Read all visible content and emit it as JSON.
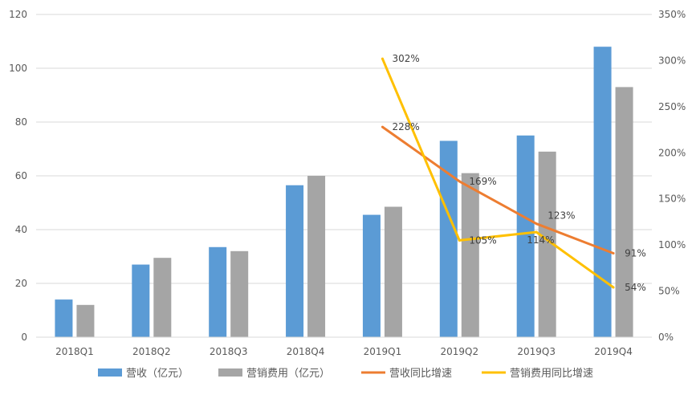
{
  "chart_data": {
    "type": "bar",
    "categories": [
      "2018Q1",
      "2018Q2",
      "2018Q3",
      "2018Q4",
      "2019Q1",
      "2019Q2",
      "2019Q3",
      "2019Q4"
    ],
    "series": [
      {
        "name": "营收（亿元）",
        "kind": "bar",
        "axis": "left",
        "color": "#5B9BD5",
        "values": [
          14,
          27,
          33.5,
          56.5,
          45.5,
          73,
          75,
          108
        ]
      },
      {
        "name": "营销费用（亿元）",
        "kind": "bar",
        "axis": "left",
        "color": "#A5A5A5",
        "values": [
          12,
          29.5,
          32,
          60,
          48.5,
          61,
          69,
          93
        ]
      },
      {
        "name": "营收同比增速",
        "kind": "line",
        "axis": "right",
        "color": "#ED7D31",
        "x": [
          "2019Q1",
          "2019Q2",
          "2019Q3",
          "2019Q4"
        ],
        "values": [
          2.28,
          1.69,
          1.23,
          0.91
        ],
        "labels": [
          "228%",
          "169%",
          "123%",
          "91%"
        ]
      },
      {
        "name": "营销费用同比增速",
        "kind": "line",
        "axis": "right",
        "color": "#FFC000",
        "x": [
          "2019Q1",
          "2019Q2",
          "2019Q3",
          "2019Q4"
        ],
        "values": [
          3.02,
          1.05,
          1.14,
          0.54
        ],
        "labels": [
          "302%",
          "105%",
          "114%",
          "54%"
        ]
      }
    ],
    "y_left": {
      "min": 0,
      "max": 120,
      "ticks": [
        "0",
        "20",
        "40",
        "60",
        "80",
        "100",
        "120"
      ]
    },
    "y_right": {
      "min": 0,
      "max": 3.5,
      "ticks": [
        "0%",
        "50%",
        "100%",
        "150%",
        "200%",
        "250%",
        "300%",
        "350%"
      ]
    },
    "grid": true,
    "legend_position": "bottom"
  }
}
